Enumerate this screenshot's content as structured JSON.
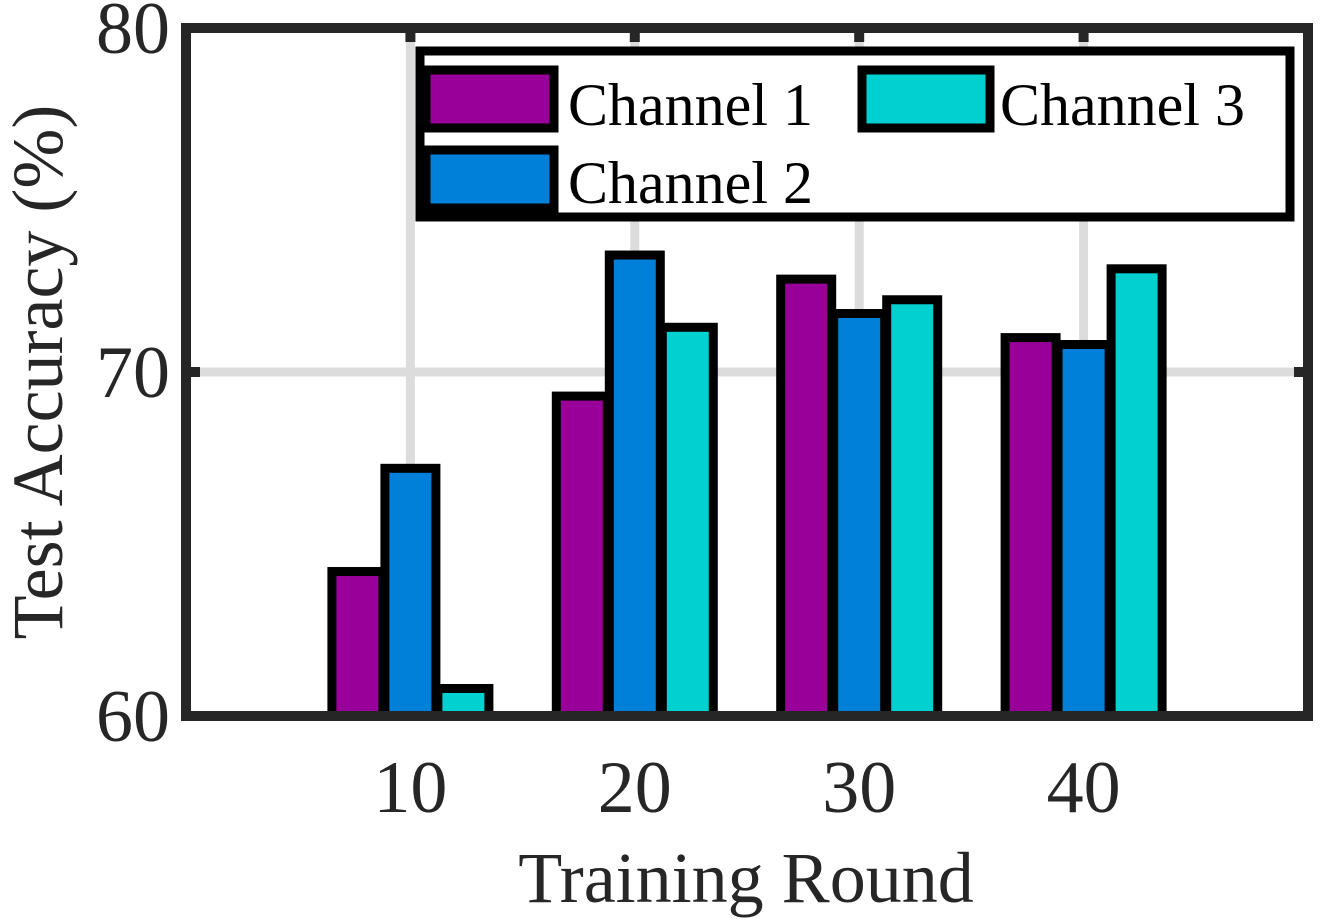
{
  "chart_data": {
    "type": "bar",
    "title": "",
    "xlabel": "Training Round",
    "ylabel": "Test  Accuracy (%)",
    "categories": [
      "10",
      "20",
      "30",
      "40"
    ],
    "xlim": [
      0,
      50
    ],
    "ylim": [
      60,
      80
    ],
    "yticks": [
      "60",
      "70",
      "80"
    ],
    "grid": true,
    "legend_position": "top-right",
    "series": [
      {
        "name": "Channel 1",
        "color": "#990099",
        "values": [
          64.2,
          69.3,
          72.7,
          71.0
        ]
      },
      {
        "name": "Channel 2",
        "color": "#0080D8",
        "values": [
          67.2,
          73.4,
          71.7,
          70.8
        ]
      },
      {
        "name": "Channel 3",
        "color": "#00D0D0",
        "values": [
          60.8,
          71.3,
          72.1,
          73.0
        ]
      }
    ]
  }
}
